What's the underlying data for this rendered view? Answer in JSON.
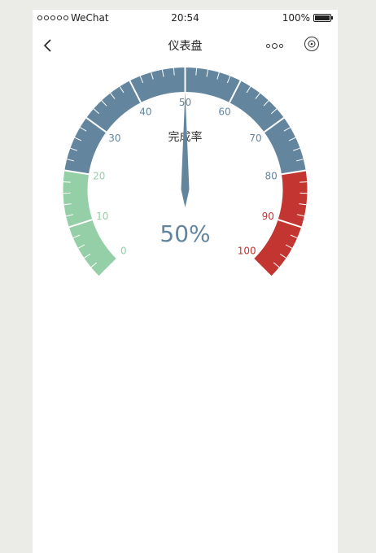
{
  "status_bar": {
    "carrier": "WeChat",
    "signal_icon": "signal-dots-icon",
    "time": "20:54",
    "battery": "100%",
    "battery_icon": "battery-icon"
  },
  "nav": {
    "back_icon": "chevron-left-icon",
    "title": "仪表盘",
    "more_icon": "more-dots-icon",
    "capsule_icon": "capsule-target-icon"
  },
  "chart_data": {
    "type": "gauge",
    "title": "完成率",
    "min": 0,
    "max": 100,
    "value": 50,
    "detail": "50%",
    "ticks": [
      "0",
      "10",
      "20",
      "30",
      "40",
      "50",
      "60",
      "70",
      "80",
      "90",
      "100"
    ],
    "bands": [
      {
        "from": 0,
        "to": 20,
        "color": "#95cfa8"
      },
      {
        "from": 20,
        "to": 80,
        "color": "#63869e"
      },
      {
        "from": 80,
        "to": 100,
        "color": "#c23531"
      }
    ],
    "pointer_color": "#63869e",
    "detail_color": "#63869e"
  }
}
